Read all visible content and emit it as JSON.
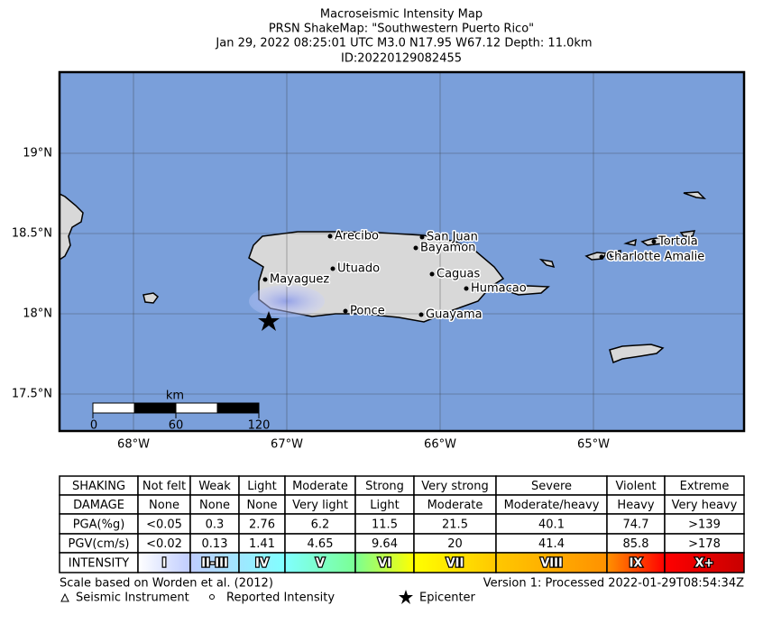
{
  "header": {
    "title": "Macroseismic Intensity Map",
    "subtitle": "PRSN ShakeMap: \"Southwestern Puerto Rico\"",
    "event": "Jan 29, 2022 08:25:01 UTC M3.0 N17.95 W67.12 Depth: 11.0km",
    "id": "ID:20220129082455"
  },
  "map": {
    "lat_labels": [
      "19°N",
      "18.5°N",
      "18°N",
      "17.5°N"
    ],
    "lon_labels": [
      "68°W",
      "67°W",
      "66°W",
      "65°W"
    ],
    "cities": [
      "Arecibo",
      "San Juan",
      "Bayamon",
      "Utuado",
      "Mayaguez",
      "Caguas",
      "Humacao",
      "Ponce",
      "Guayama",
      "Tortola",
      "Charlotte Amalie"
    ],
    "scale_bar": {
      "unit": "km",
      "labels": [
        "0",
        "60",
        "120"
      ]
    }
  },
  "table": {
    "rows": [
      [
        "SHAKING",
        "Not felt",
        "Weak",
        "Light",
        "Moderate",
        "Strong",
        "Very strong",
        "Severe",
        "Violent",
        "Extreme"
      ],
      [
        "DAMAGE",
        "None",
        "None",
        "None",
        "Very light",
        "Light",
        "Moderate",
        "Moderate/heavy",
        "Heavy",
        "Very heavy"
      ],
      [
        "PGA(%g)",
        "<0.05",
        "0.3",
        "2.76",
        "6.2",
        "11.5",
        "21.5",
        "40.1",
        "74.7",
        ">139"
      ],
      [
        "PGV(cm/s)",
        "<0.02",
        "0.13",
        "1.41",
        "4.65",
        "9.64",
        "20",
        "41.4",
        "85.8",
        ">178"
      ],
      [
        "INTENSITY",
        "I",
        "II-III",
        "IV",
        "V",
        "VI",
        "VII",
        "VIII",
        "IX",
        "X+"
      ]
    ]
  },
  "footer": {
    "scale_note": "Scale based on Worden et al. (2012)",
    "version": "Version 1: Processed 2022-01-29T08:54:34Z",
    "legend": [
      "Seismic Instrument",
      "Reported Intensity",
      "Epicenter"
    ]
  }
}
